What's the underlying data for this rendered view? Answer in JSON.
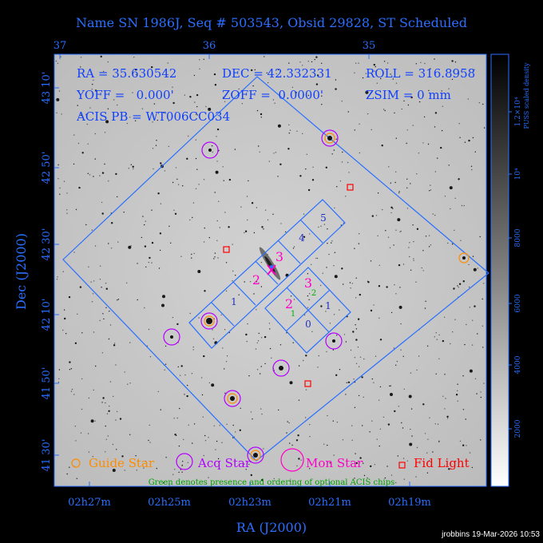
{
  "title": "Name SN 1986J, Seq # 503543, Obsid 29828, ST Scheduled",
  "top_ticks": [
    "37",
    "36",
    "35"
  ],
  "info": {
    "ra": "RA = 35.630542",
    "dec": "DEC = 42.332331",
    "roll": "ROLL = 316.8958",
    "yoff": "YOFF =   0.000'",
    "zoff": "ZOFF =  0.0000'",
    "zsim": "ZSIM = 0 mm",
    "acis": "ACIS PB = WT006CC034"
  },
  "y_ticks": [
    "43 10'",
    "42 50'",
    "42 30'",
    "42 10'",
    "41 50'",
    "41 30'"
  ],
  "x_ticks": [
    "02h27m",
    "02h25m",
    "02h23m",
    "02h21m",
    "02h19m"
  ],
  "xlabel": "RA (J2000)",
  "ylabel": "Dec (J2000)",
  "chips": [
    "5",
    "4",
    "3",
    "2",
    "1",
    "3",
    "2",
    "0",
    "1"
  ],
  "optional_chips": [
    "2",
    "1"
  ],
  "legend": {
    "guide": "Guide Star",
    "acq": "Acq Star",
    "mon": "Mon Star",
    "fid": "Fid Light",
    "note": "Green denotes presence and ordering of optional ACIS chips"
  },
  "colorbar": {
    "ticks": [
      "2000",
      "4000",
      "6000",
      "8000",
      "10⁴",
      "1.2×10⁴"
    ],
    "label": "PUSS scaled density"
  },
  "footer": "jrobbins 19-Mar-2026 10:53",
  "colors": {
    "axis": "#2a6fff",
    "guide": "#ff8c00",
    "acq": "#b400ff",
    "mon": "#ff00c8",
    "fid": "#ff0000",
    "optional": "#00b000"
  }
}
